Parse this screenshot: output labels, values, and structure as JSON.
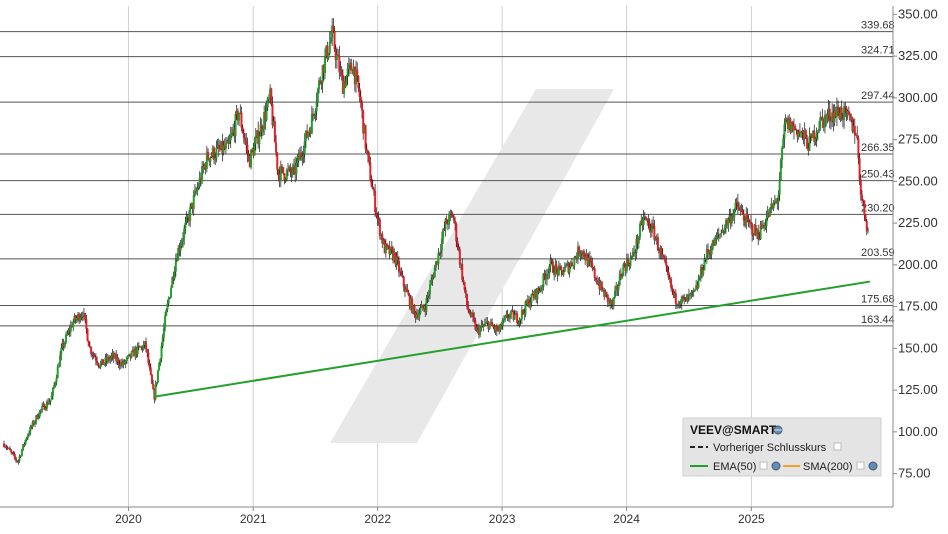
{
  "chart_data": {
    "type": "candlestick",
    "symbol": "VEEV@SMART",
    "x_axis": {
      "tick_labels": [
        "2020",
        "2021",
        "2022",
        "2023",
        "2024",
        "2025"
      ]
    },
    "y_axis": {
      "range": [
        55,
        355
      ],
      "tick_values": [
        75,
        100,
        125,
        150,
        175,
        200,
        225,
        250,
        275,
        300,
        325,
        350
      ],
      "tick_labels": [
        "75.00",
        "100.00",
        "125.00",
        "150.00",
        "175.00",
        "200.00",
        "225.00",
        "250.00",
        "275.00",
        "300.00",
        "325.00",
        "350.00"
      ],
      "side": "right"
    },
    "horizontal_levels": [
      {
        "value": 339.68,
        "label": "339.68"
      },
      {
        "value": 324.71,
        "label": "324.71"
      },
      {
        "value": 297.44,
        "label": "297.44"
      },
      {
        "value": 266.35,
        "label": "266.35"
      },
      {
        "value": 250.43,
        "label": "250.43"
      },
      {
        "value": 230.2,
        "label": "230.20"
      },
      {
        "value": 203.59,
        "label": "203.59"
      },
      {
        "value": 175.68,
        "label": "175.68"
      },
      {
        "value": 163.44,
        "label": "163.44"
      }
    ],
    "trendline": {
      "color": "#22a02a",
      "start": {
        "date": "2020-03-16",
        "value": 121
      },
      "end": {
        "date": "2025-12-15",
        "value": 190
      }
    },
    "price_path": [
      [
        "2019-01-01",
        93
      ],
      [
        "2019-02-10",
        82
      ],
      [
        "2019-03-10",
        98
      ],
      [
        "2019-04-15",
        112
      ],
      [
        "2019-05-20",
        120
      ],
      [
        "2019-06-20",
        150
      ],
      [
        "2019-07-20",
        165
      ],
      [
        "2019-08-20",
        172
      ],
      [
        "2019-09-10",
        150
      ],
      [
        "2019-10-10",
        140
      ],
      [
        "2019-11-15",
        145
      ],
      [
        "2019-12-15",
        140
      ],
      [
        "2020-01-20",
        148
      ],
      [
        "2020-02-20",
        152
      ],
      [
        "2020-03-16",
        120
      ],
      [
        "2020-04-20",
        170
      ],
      [
        "2020-05-20",
        205
      ],
      [
        "2020-06-20",
        225
      ],
      [
        "2020-07-20",
        245
      ],
      [
        "2020-08-20",
        265
      ],
      [
        "2020-09-20",
        268
      ],
      [
        "2020-10-20",
        270
      ],
      [
        "2020-11-20",
        292
      ],
      [
        "2020-12-20",
        262
      ],
      [
        "2021-01-20",
        280
      ],
      [
        "2021-02-20",
        300
      ],
      [
        "2021-03-15",
        255
      ],
      [
        "2021-05-01",
        255
      ],
      [
        "2021-06-20",
        285
      ],
      [
        "2021-07-20",
        315
      ],
      [
        "2021-08-20",
        338
      ],
      [
        "2021-09-20",
        308
      ],
      [
        "2021-10-20",
        320
      ],
      [
        "2021-11-10",
        300
      ],
      [
        "2021-12-01",
        265
      ],
      [
        "2021-12-31",
        228
      ],
      [
        "2022-01-20",
        210
      ],
      [
        "2022-02-20",
        205
      ],
      [
        "2022-03-15",
        190
      ],
      [
        "2022-04-20",
        170
      ],
      [
        "2022-05-20",
        175
      ],
      [
        "2022-06-20",
        200
      ],
      [
        "2022-07-20",
        225
      ],
      [
        "2022-08-10",
        230
      ],
      [
        "2022-09-20",
        175
      ],
      [
        "2022-10-20",
        160
      ],
      [
        "2022-11-20",
        165
      ],
      [
        "2022-12-20",
        160
      ],
      [
        "2023-01-20",
        170
      ],
      [
        "2023-02-20",
        168
      ],
      [
        "2023-03-20",
        178
      ],
      [
        "2023-04-20",
        185
      ],
      [
        "2023-05-20",
        200
      ],
      [
        "2023-06-20",
        195
      ],
      [
        "2023-07-20",
        200
      ],
      [
        "2023-08-20",
        210
      ],
      [
        "2023-09-20",
        198
      ],
      [
        "2023-10-20",
        185
      ],
      [
        "2023-11-20",
        175
      ],
      [
        "2023-12-20",
        198
      ],
      [
        "2024-01-20",
        205
      ],
      [
        "2024-02-20",
        228
      ],
      [
        "2024-03-20",
        220
      ],
      [
        "2024-04-20",
        200
      ],
      [
        "2024-05-20",
        180
      ],
      [
        "2024-06-20",
        178
      ],
      [
        "2024-07-20",
        183
      ],
      [
        "2024-08-20",
        205
      ],
      [
        "2024-09-20",
        215
      ],
      [
        "2024-10-20",
        225
      ],
      [
        "2024-11-20",
        235
      ],
      [
        "2024-12-20",
        225
      ],
      [
        "2025-01-20",
        218
      ],
      [
        "2025-02-20",
        230
      ],
      [
        "2025-03-20",
        240
      ],
      [
        "2025-04-10",
        285
      ],
      [
        "2025-05-20",
        280
      ],
      [
        "2025-06-20",
        272
      ],
      [
        "2025-07-20",
        285
      ],
      [
        "2025-08-20",
        290
      ],
      [
        "2025-09-20",
        292
      ],
      [
        "2025-10-20",
        285
      ],
      [
        "2025-11-05",
        280
      ],
      [
        "2025-11-20",
        240
      ],
      [
        "2025-12-10",
        220
      ]
    ],
    "legend": {
      "title": "VEEV@SMART",
      "items": [
        {
          "label": "Vorheriger Schlusskurs",
          "style": "dashed",
          "color": "#222222"
        },
        {
          "label": "EMA(50)",
          "style": "solid",
          "color": "#22a02a"
        },
        {
          "label": "SMA(200)",
          "style": "solid",
          "color": "#f0a030"
        }
      ],
      "placement": "bottom-right"
    },
    "grid": "horizontal levels and year separators",
    "colors": {
      "up": "#22a02a",
      "down": "#e2202a",
      "level_line": "#555555",
      "grid": "#d0d0d0",
      "watermark": "#e8e8e8",
      "legend_bg": "#e4e4e4"
    }
  }
}
